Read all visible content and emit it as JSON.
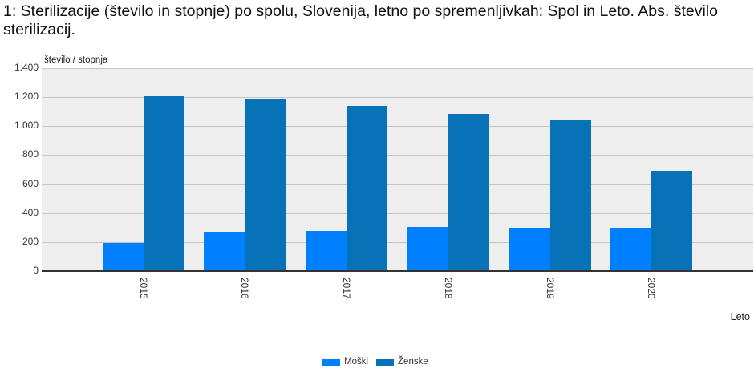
{
  "title": "1: Sterilizacije (število in stopnje) po spolu, Slovenija, letno po spremenljivkah: Spol in Leto. Abs. število sterilizacij.",
  "ylabel": "število / stopnja",
  "xlabel": "Leto",
  "yticks": [
    "0",
    "200",
    "400",
    "600",
    "800",
    "1.000",
    "1.200",
    "1.400"
  ],
  "legend": [
    {
      "label": "Moški",
      "color": "#0080ff"
    },
    {
      "label": "Ženske",
      "color": "#0772b8"
    }
  ],
  "chart_data": {
    "type": "bar",
    "title": "1: Sterilizacije (število in stopnje) po spolu, Slovenija, letno po spremenljivkah: Spol in Leto. Abs. število sterilizacij.",
    "xlabel": "Leto",
    "ylabel": "število / stopnja",
    "categories": [
      "2015",
      "2016",
      "2017",
      "2018",
      "2019",
      "2020"
    ],
    "series": [
      {
        "name": "Moški",
        "color": "#0080ff",
        "values": [
          192,
          272,
          277,
          306,
          301,
          301
        ]
      },
      {
        "name": "Ženske",
        "color": "#0772b8",
        "values": [
          1207,
          1184,
          1140,
          1083,
          1042,
          691
        ]
      }
    ],
    "ylim": [
      0,
      1400
    ],
    "yticks": [
      0,
      200,
      400,
      600,
      800,
      1000,
      1200,
      1400
    ],
    "grid": true,
    "legend_position": "bottom"
  }
}
